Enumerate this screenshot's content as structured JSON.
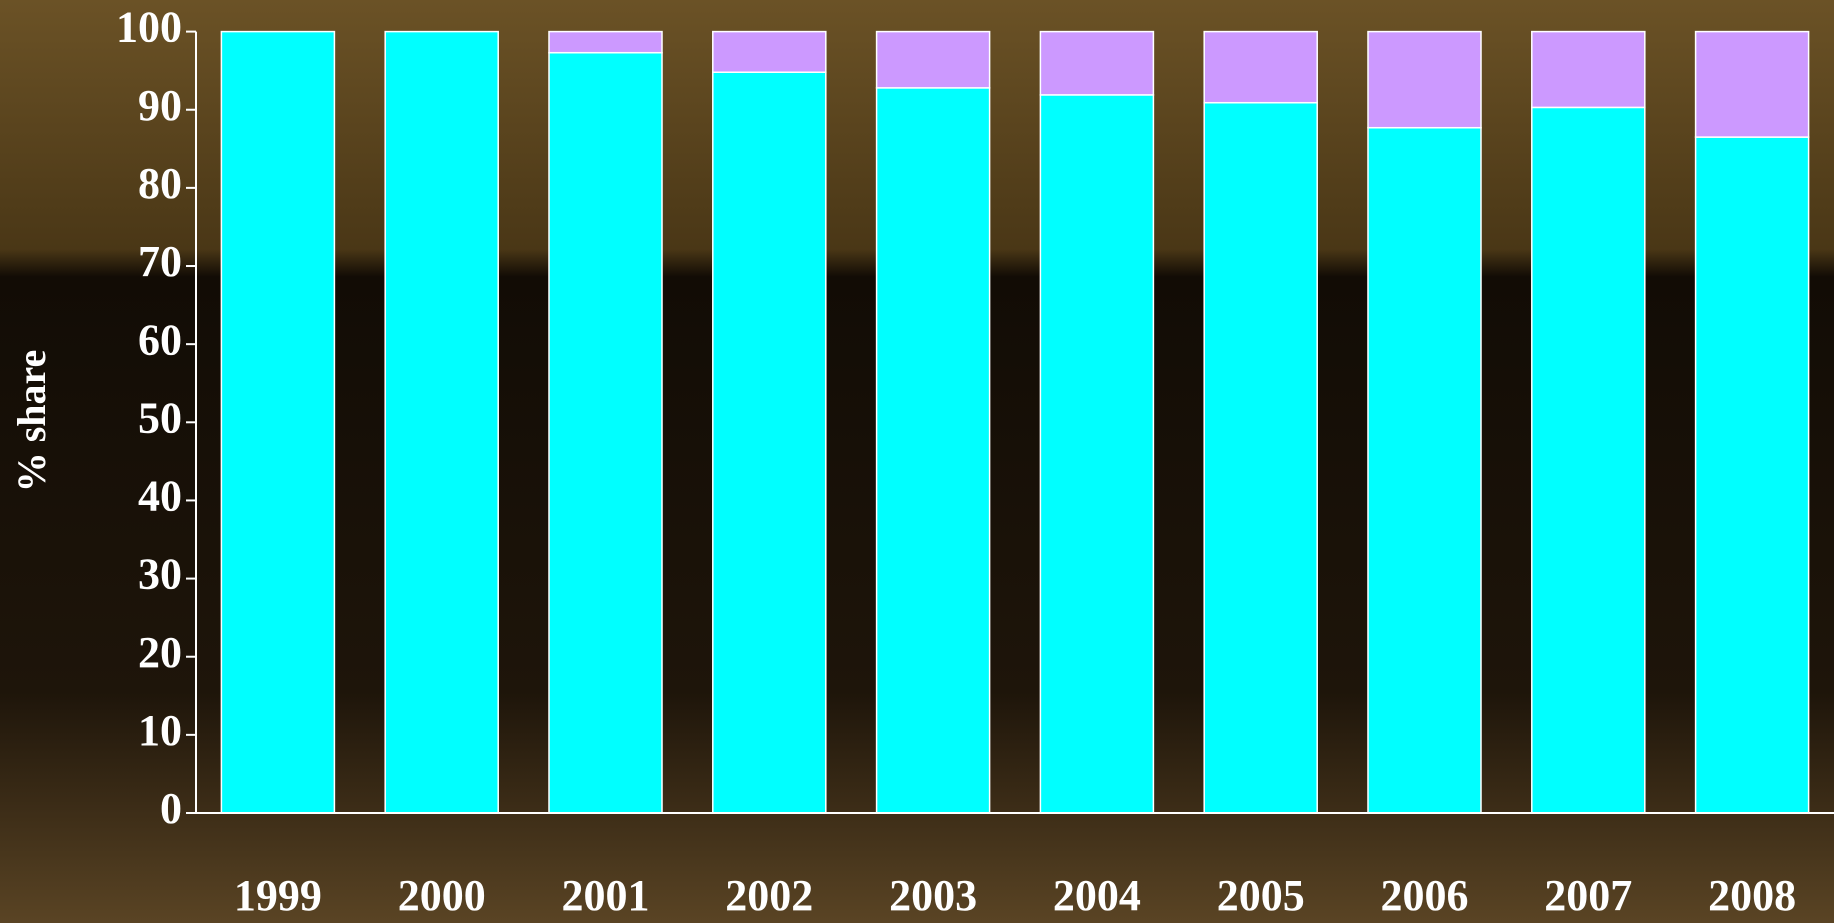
{
  "chart_data": {
    "type": "stacked_bar",
    "y_label": "% share",
    "categories": [
      "1999",
      "2000",
      "2001",
      "2002",
      "2003",
      "2004",
      "2005",
      "2006",
      "2007",
      "2008"
    ],
    "series": [
      {
        "color": "#00ffff",
        "values": [
          100,
          100,
          97.3,
          94.8,
          92.8,
          91.9,
          90.9,
          87.7,
          90.3,
          86.5
        ]
      },
      {
        "color": "#cc99ff",
        "values": [
          0,
          0,
          2.7,
          5.2,
          7.2,
          8.1,
          9.1,
          12.3,
          9.7,
          13.5
        ]
      }
    ],
    "ylim": [
      0,
      100
    ],
    "yticks": [
      0,
      10,
      20,
      30,
      40,
      50,
      60,
      70,
      80,
      90,
      100
    ],
    "grid": false
  }
}
